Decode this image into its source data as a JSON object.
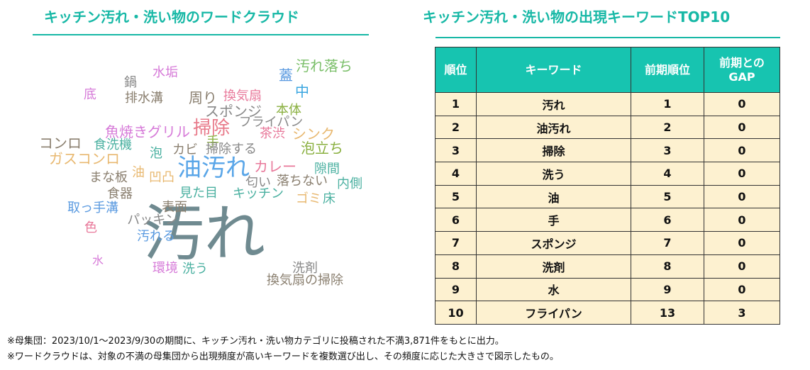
{
  "left_title": "キッチン汚れ・洗い物のワードクラウド",
  "right_title": "キッチン汚れ・洗い物の出現キーワードTOP10",
  "word_cloud": [
    {
      "text": "汚れ",
      "color": "#6f8a90",
      "size": 86
    },
    {
      "text": "油汚れ",
      "color": "#5aa6e8",
      "size": 34
    },
    {
      "text": "掃除",
      "color": "#e87a8a",
      "size": 26
    },
    {
      "text": "汚れ落ち",
      "color": "#7bbf6a",
      "size": 20
    },
    {
      "text": "水垢",
      "color": "#d67ad8",
      "size": 18
    },
    {
      "text": "蓋",
      "color": "#5a9ae0",
      "size": 20
    },
    {
      "text": "鍋",
      "color": "#888888",
      "size": 18
    },
    {
      "text": "中",
      "color": "#3aa6e0",
      "size": 20
    },
    {
      "text": "底",
      "color": "#d67ad8",
      "size": 18
    },
    {
      "text": "排水溝",
      "color": "#8a7f6f",
      "size": 18
    },
    {
      "text": "周り",
      "color": "#8a7f6f",
      "size": 20
    },
    {
      "text": "換気扇",
      "color": "#e8789a",
      "size": 18
    },
    {
      "text": "スポンジ",
      "color": "#888888",
      "size": 20
    },
    {
      "text": "本体",
      "color": "#8ab040",
      "size": 18
    },
    {
      "text": "フライパン",
      "color": "#888888",
      "size": 18
    },
    {
      "text": "魚焼きグリル",
      "color": "#d67ad8",
      "size": 20
    },
    {
      "text": "茶渋",
      "color": "#e8789a",
      "size": 18
    },
    {
      "text": "シンク",
      "color": "#e8b870",
      "size": 20
    },
    {
      "text": "コンロ",
      "color": "#8a7f6f",
      "size": 20
    },
    {
      "text": "食洗機",
      "color": "#4ab0a0",
      "size": 18
    },
    {
      "text": "手",
      "color": "#8ab040",
      "size": 18
    },
    {
      "text": "泡立ち",
      "color": "#8ab040",
      "size": 20
    },
    {
      "text": "カビ",
      "color": "#8a7f6f",
      "size": 18
    },
    {
      "text": "泡",
      "color": "#4ab0a0",
      "size": 18
    },
    {
      "text": "掃除する",
      "color": "#888888",
      "size": 18
    },
    {
      "text": "ガスコンロ",
      "color": "#e8b870",
      "size": 20
    },
    {
      "text": "カレー",
      "color": "#e8789a",
      "size": 20
    },
    {
      "text": "隙間",
      "color": "#4ab0a0",
      "size": 18
    },
    {
      "text": "まな板",
      "color": "#8a7f6f",
      "size": 18
    },
    {
      "text": "油",
      "color": "#e8b870",
      "size": 18
    },
    {
      "text": "凹凸",
      "color": "#e8b870",
      "size": 18
    },
    {
      "text": "匂い",
      "color": "#888888",
      "size": 18
    },
    {
      "text": "落ちない",
      "color": "#8a7f6f",
      "size": 18
    },
    {
      "text": "内側",
      "color": "#4ab0a0",
      "size": 18
    },
    {
      "text": "食器",
      "color": "#8a7f6f",
      "size": 18
    },
    {
      "text": "見た目",
      "color": "#4ab0a0",
      "size": 18
    },
    {
      "text": "キッチン",
      "color": "#4ab0a0",
      "size": 18
    },
    {
      "text": "ゴミ",
      "color": "#e8b870",
      "size": 18
    },
    {
      "text": "床",
      "color": "#4ab0a0",
      "size": 18
    },
    {
      "text": "取っ手溝",
      "color": "#5a9ae0",
      "size": 18
    },
    {
      "text": "表面",
      "color": "#8a7f6f",
      "size": 18
    },
    {
      "text": "パッキン",
      "color": "#888888",
      "size": 18
    },
    {
      "text": "色",
      "color": "#e8789a",
      "size": 18
    },
    {
      "text": "汚れる",
      "color": "#5a9ae0",
      "size": 18
    },
    {
      "text": "水",
      "color": "#d67ad8",
      "size": 16
    },
    {
      "text": "環境",
      "color": "#d67ad8",
      "size": 18
    },
    {
      "text": "洗う",
      "color": "#4ab0a0",
      "size": 18
    },
    {
      "text": "洗剤",
      "color": "#888888",
      "size": 18
    },
    {
      "text": "換気扇の掃除",
      "color": "#8a7f6f",
      "size": 18
    }
  ],
  "table": {
    "headers": [
      "順位",
      "キーワード",
      "前期順位",
      "前期との\nGAP"
    ],
    "rows": [
      [
        "1",
        "汚れ",
        "1",
        "0"
      ],
      [
        "2",
        "油汚れ",
        "2",
        "0"
      ],
      [
        "3",
        "掃除",
        "3",
        "0"
      ],
      [
        "4",
        "洗う",
        "4",
        "0"
      ],
      [
        "5",
        "油",
        "5",
        "0"
      ],
      [
        "6",
        "手",
        "6",
        "0"
      ],
      [
        "7",
        "スポンジ",
        "7",
        "0"
      ],
      [
        "8",
        "洗剤",
        "8",
        "0"
      ],
      [
        "9",
        "水",
        "9",
        "0"
      ],
      [
        "10",
        "フライパン",
        "13",
        "3"
      ]
    ]
  },
  "notes": [
    "※母集団：2023/10/1～2023/9/30の期間に、キッチン汚れ・洗い物カテゴリに投稿された不満3,871件をもとに出力。",
    "※ワードクラウドは、対象の不満の母集団から出現頻度が高いキーワードを複数選び出し、その頻度に応じた大きさで図示したもの。"
  ],
  "chart_data": {
    "type": "table",
    "title": "キッチン汚れ・洗い物の出現キーワードTOP10",
    "columns": [
      "順位",
      "キーワード",
      "前期順位",
      "前期とのGAP"
    ],
    "rows": [
      [
        1,
        "汚れ",
        1,
        0
      ],
      [
        2,
        "油汚れ",
        2,
        0
      ],
      [
        3,
        "掃除",
        3,
        0
      ],
      [
        4,
        "洗う",
        4,
        0
      ],
      [
        5,
        "油",
        5,
        0
      ],
      [
        6,
        "手",
        6,
        0
      ],
      [
        7,
        "スポンジ",
        7,
        0
      ],
      [
        8,
        "洗剤",
        8,
        0
      ],
      [
        9,
        "水",
        9,
        0
      ],
      [
        10,
        "フライパン",
        13,
        3
      ]
    ]
  }
}
